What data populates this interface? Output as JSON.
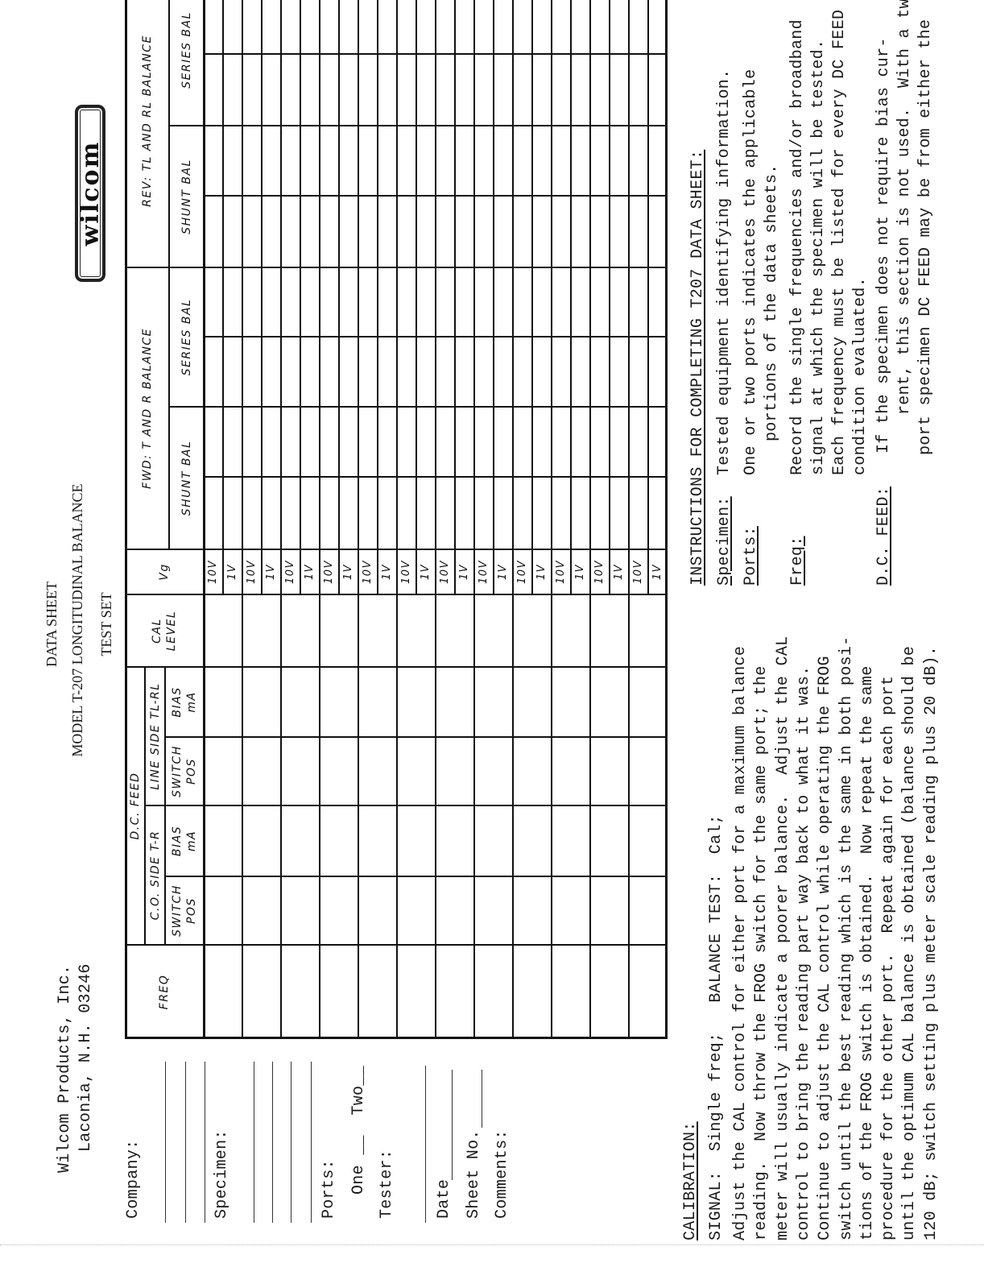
{
  "company": {
    "name": "Wilcom Products, Inc.",
    "address": "Laconia, N.H. 03246",
    "logo_text": "wilcom"
  },
  "title": {
    "line1": "DATA SHEET",
    "line2": "MODEL T-207 LONGITUDINAL BALANCE",
    "line3": "TEST SET"
  },
  "form": {
    "company_label": "Company:",
    "specimen_label": "Specimen:",
    "ports_label": "Ports:",
    "ports_options": "One __  Two__",
    "tester_label": "Tester:",
    "date_label": "Date",
    "sheet_label": "Sheet No.",
    "comments_label": "Comments:"
  },
  "table": {
    "freq": "FREQ",
    "dc_feed": "D.C. FEED",
    "co_side": "C.O. SIDE T-R",
    "line_side": "LINE SIDE TL-RL",
    "switch_pos": [
      "SWITCH",
      "POS"
    ],
    "bias_ma": [
      "BIAS",
      "mA"
    ],
    "cal_level": [
      "CAL",
      "LEVEL"
    ],
    "vg": "Vg",
    "fwd": "FWD: T AND R BALANCE",
    "rev": "REV: TL AND RL BALANCE",
    "shunt": "SHUNT BAL",
    "series": "SERIES BAL",
    "rows": [
      {
        "vg": [
          "10V",
          "1V"
        ]
      },
      {
        "vg": [
          "10V",
          "1V"
        ]
      },
      {
        "vg": [
          "10V",
          "1V"
        ]
      },
      {
        "vg": [
          "10V",
          "1V"
        ]
      },
      {
        "vg": [
          "10V",
          "1V"
        ]
      },
      {
        "vg": [
          "10V",
          "1V"
        ]
      },
      {
        "vg": [
          "10V",
          "1V"
        ]
      },
      {
        "vg": [
          "10V",
          "1V"
        ]
      },
      {
        "vg": [
          "10V",
          "1V"
        ]
      },
      {
        "vg": [
          "10V",
          "1V"
        ]
      },
      {
        "vg": [
          "10V",
          "1V"
        ]
      },
      {
        "vg": [
          "10V",
          "1V"
        ]
      }
    ]
  },
  "calibration": {
    "title": "CALIBRATION:",
    "signal": "SIGNAL:  Single freq;   BALANCE TEST:  Cal;",
    "lines": [
      "Adjust the CAL control for either port for a maximum balance",
      "reading.  Now throw the FROG switch for the same port; the",
      "meter will usually indicate a poorer balance.  Adjust the CAL",
      "control to bring the reading part way back to what it was.",
      "Continue to adjust the CAL control while operating the FROG",
      "switch until the best reading which is the same in both posi-",
      "tions of the FROG switch is obtained.  Now repeat the same",
      "procedure for the other port.  Repeat again for each port",
      "until the optimum CAL balance is obtained (balance should be",
      "120 dB; switch setting plus meter scale reading plus 20 dB)."
    ]
  },
  "instructions": {
    "title": "INSTRUCTIONS FOR COMPLETING T207 DATA SHEET:",
    "items": [
      {
        "label": "Specimen:",
        "lines": [
          "Tested equipment identifying information."
        ]
      },
      {
        "label": "Ports:",
        "lines": [
          "One or two ports indicates the applicable",
          "portions of the data sheets."
        ]
      },
      {
        "label": "Freq:",
        "lines": [
          "Record the single frequencies and/or broadband",
          "signal at which the specimen will be tested.",
          "Each frequency must be listed for every DC FEED",
          "condition evaluated."
        ]
      },
      {
        "label": "D.C. FEED:",
        "lines": [
          "If the specimen does not require bias cur-",
          "rent, this section is not used.  With a two",
          "port specimen DC FEED may be from either the"
        ]
      }
    ]
  }
}
